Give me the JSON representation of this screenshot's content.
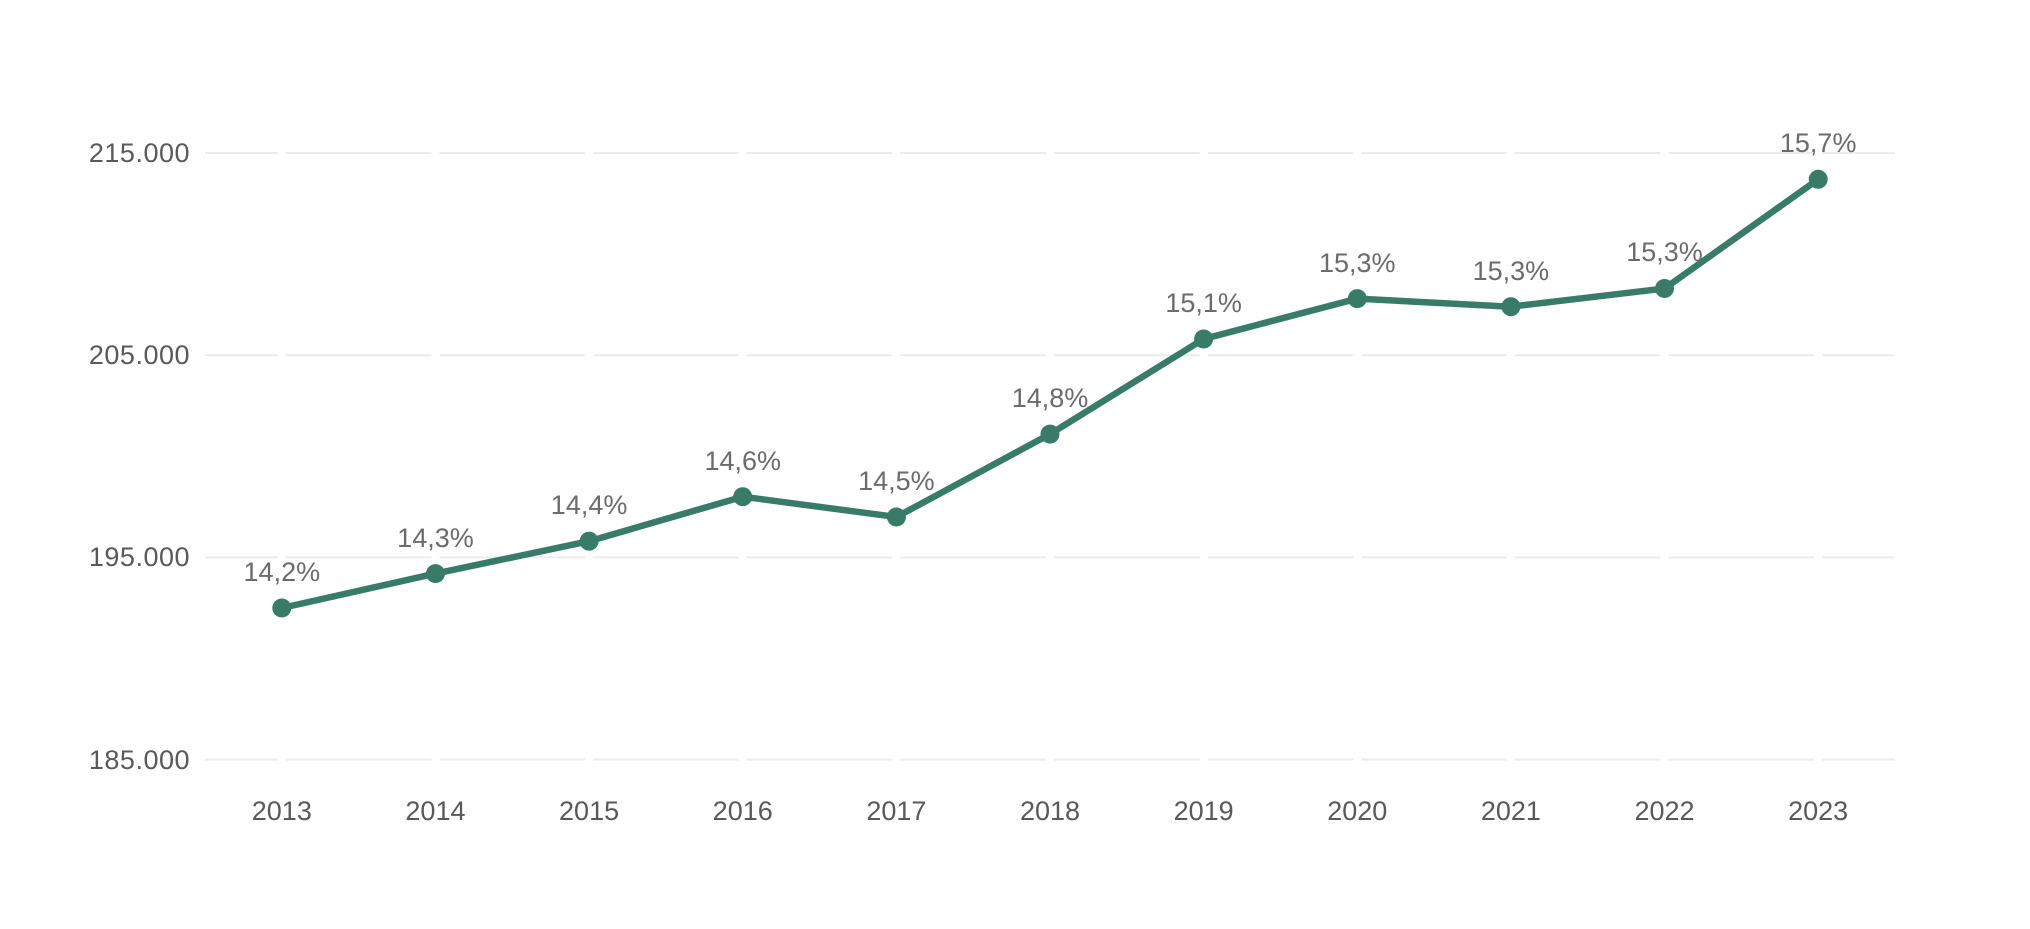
{
  "chart_data": {
    "type": "line",
    "title": "",
    "xlabel": "",
    "ylabel": "",
    "categories": [
      "2013",
      "2014",
      "2015",
      "2016",
      "2017",
      "2018",
      "2019",
      "2020",
      "2021",
      "2022",
      "2023"
    ],
    "values": [
      192500,
      194200,
      195800,
      198000,
      197000,
      201100,
      205800,
      207800,
      207400,
      208300,
      213700
    ],
    "point_labels": [
      "14,2%",
      "14,3%",
      "14,4%",
      "14,6%",
      "14,5%",
      "14,8%",
      "15,1%",
      "15,3%",
      "15,3%",
      "15,3%",
      "15,7%"
    ],
    "y_ticks": [
      {
        "label": "215.000",
        "value": 215000
      },
      {
        "label": "205.000",
        "value": 205000
      },
      {
        "label": "195.000",
        "value": 195000
      },
      {
        "label": "185.000",
        "value": 185000
      }
    ],
    "ylim": [
      185000,
      215000
    ],
    "grid": "horizontal-dashed",
    "legend": "none",
    "colors": {
      "line": "#377B68",
      "point": "#377B68",
      "grid": "#ECECEC",
      "axis_text": "#595959",
      "point_label_text": "#6b6b6b",
      "background": "#ffffff"
    }
  }
}
